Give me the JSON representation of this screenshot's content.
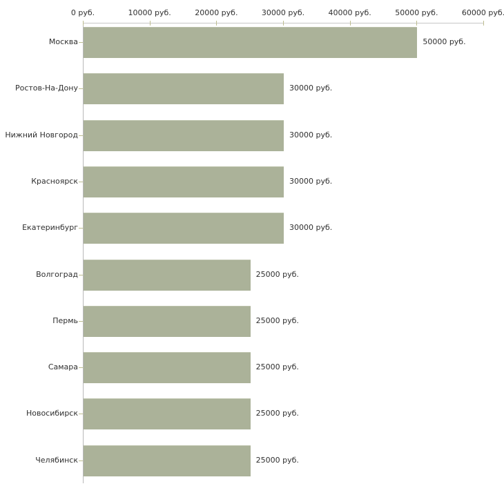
{
  "chart_data": {
    "type": "bar",
    "orientation": "horizontal",
    "title": "",
    "xlabel": "",
    "ylabel": "",
    "unit": "руб.",
    "categories": [
      "Москва",
      "Ростов-На-Дону",
      "Нижний Новгород",
      "Красноярск",
      "Екатеринбург",
      "Волгоград",
      "Пермь",
      "Самара",
      "Новосибирск",
      "Челябинск"
    ],
    "values": [
      50000,
      30000,
      30000,
      30000,
      30000,
      25000,
      25000,
      25000,
      25000,
      25000
    ],
    "value_labels": [
      "50000 руб.",
      "30000 руб.",
      "30000 руб.",
      "30000 руб.",
      "30000 руб.",
      "25000 руб.",
      "25000 руб.",
      "25000 руб.",
      "25000 руб.",
      "25000 руб."
    ],
    "x_ticks": [
      "0 руб.",
      "10000 руб.",
      "20000 руб.",
      "30000 руб.",
      "40000 руб.",
      "50000 руб.",
      "60000 руб."
    ],
    "x_tick_values": [
      0,
      10000,
      20000,
      30000,
      40000,
      50000,
      60000
    ],
    "xlim": [
      0,
      60000
    ],
    "grid": false,
    "legend": "none",
    "colors": {
      "bar": "#abb299",
      "axis": "#c6c6c6",
      "tick_mark": "#bdbd8f",
      "text": "#2f2f2f",
      "background": "#ffffff"
    }
  }
}
